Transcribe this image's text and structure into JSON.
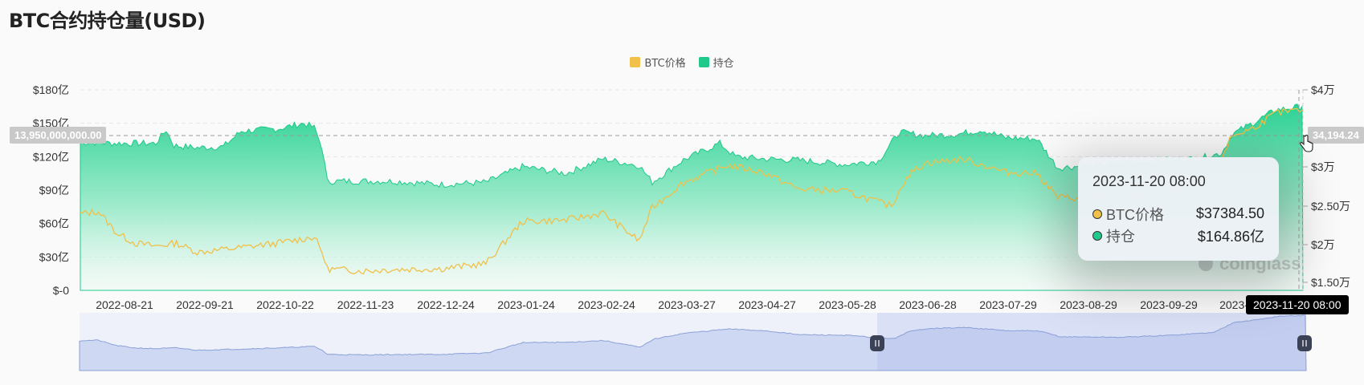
{
  "page": {
    "title": "BTC合约持仓量(USD)"
  },
  "legend": {
    "items": [
      {
        "label": "BTC价格",
        "color": "#f0c048"
      },
      {
        "label": "持仓",
        "color": "#1ec98a"
      }
    ]
  },
  "tooltip": {
    "title": "2023-11-20 08:00",
    "rows": [
      {
        "name": "BTC价格",
        "value": "$37384.50",
        "color": "#f0c048"
      },
      {
        "name": "持仓",
        "value": "$164.86亿",
        "color": "#1ec98a"
      }
    ]
  },
  "crosshair": {
    "y_left_label": "13,950,000,000.00",
    "y_right_label": "34,194.24",
    "x_label": "2023-11-20 08:00"
  },
  "watermark": {
    "text": "coinglass"
  },
  "chart_data": {
    "type": "area",
    "x_ticks": [
      "2022-08-21",
      "2022-09-21",
      "2022-10-22",
      "2022-11-23",
      "2022-12-24",
      "2023-01-24",
      "2023-02-24",
      "2023-03-27",
      "2023-04-27",
      "2023-05-28",
      "2023-06-28",
      "2023-07-29",
      "2023-08-29",
      "2023-09-29",
      "2023-",
      "2023-11-20 08:00"
    ],
    "y_left": {
      "ticks": [
        "$-0",
        "$30亿",
        "$60亿",
        "$90亿",
        "$120亿",
        "$150亿",
        "$180亿"
      ],
      "range": [
        0,
        180
      ]
    },
    "y_right": {
      "ticks": [
        "$1.50万",
        "$2万",
        "$2.50万",
        "$3万",
        "$4万"
      ]
    },
    "x_range": [
      "2022-08-07",
      "2023-11-20"
    ],
    "series": [
      {
        "name": "持仓",
        "axis": "left",
        "color": "#1ec98a",
        "x": [
          "2022-08-07",
          "2022-08-21",
          "2022-09-05",
          "2022-09-09",
          "2022-09-12",
          "2022-09-21",
          "2022-10-01",
          "2022-10-08",
          "2022-10-22",
          "2022-11-01",
          "2022-11-05",
          "2022-11-08",
          "2022-11-10",
          "2022-11-23",
          "2022-12-05",
          "2022-12-24",
          "2023-01-10",
          "2023-01-24",
          "2023-02-10",
          "2023-02-24",
          "2023-03-10",
          "2023-03-15",
          "2023-03-27",
          "2023-04-10",
          "2023-04-16",
          "2023-04-27",
          "2023-05-10",
          "2023-05-28",
          "2023-06-10",
          "2023-06-18",
          "2023-06-28",
          "2023-07-10",
          "2023-07-20",
          "2023-07-29",
          "2023-08-10",
          "2023-08-18",
          "2023-08-29",
          "2023-09-10",
          "2023-09-29",
          "2023-10-10",
          "2023-10-20",
          "2023-10-24",
          "2023-11-01",
          "2023-11-10",
          "2023-11-20"
        ],
        "values": [
          133,
          132,
          132,
          144,
          130,
          128,
          129,
          143,
          145,
          150,
          146,
          128,
          98,
          98,
          98,
          95,
          97,
          111,
          105,
          118,
          112,
          97,
          117,
          132,
          120,
          118,
          117,
          113,
          116,
          142,
          139,
          140,
          144,
          137,
          136,
          110,
          112,
          114,
          117,
          118,
          123,
          140,
          150,
          162,
          165
        ]
      },
      {
        "name": "BTC价格",
        "axis": "right",
        "color": "#f0c048",
        "x": [
          "2022-08-07",
          "2022-08-14",
          "2022-08-21",
          "2022-08-28",
          "2022-09-05",
          "2022-09-13",
          "2022-09-21",
          "2022-10-05",
          "2022-10-22",
          "2022-11-05",
          "2022-11-08",
          "2022-11-10",
          "2022-11-23",
          "2022-12-05",
          "2022-12-24",
          "2023-01-10",
          "2023-01-24",
          "2023-02-10",
          "2023-02-24",
          "2023-03-10",
          "2023-03-15",
          "2023-03-27",
          "2023-04-13",
          "2023-04-27",
          "2023-05-10",
          "2023-05-28",
          "2023-06-15",
          "2023-06-21",
          "2023-06-28",
          "2023-07-13",
          "2023-07-29",
          "2023-08-10",
          "2023-08-18",
          "2023-08-29",
          "2023-09-10",
          "2023-09-29",
          "2023-10-16",
          "2023-10-24",
          "2023-11-01",
          "2023-11-10",
          "2023-11-20"
        ],
        "values": [
          24000,
          24300,
          21500,
          20200,
          19800,
          20200,
          19000,
          19500,
          20200,
          21000,
          19000,
          16800,
          16500,
          16700,
          16800,
          17500,
          23000,
          23200,
          24100,
          20500,
          24800,
          28000,
          30200,
          29300,
          27200,
          26900,
          25000,
          28800,
          30500,
          31000,
          29300,
          29200,
          26100,
          26000,
          25800,
          26900,
          28400,
          34000,
          35000,
          37000,
          37384.5
        ]
      }
    ]
  }
}
